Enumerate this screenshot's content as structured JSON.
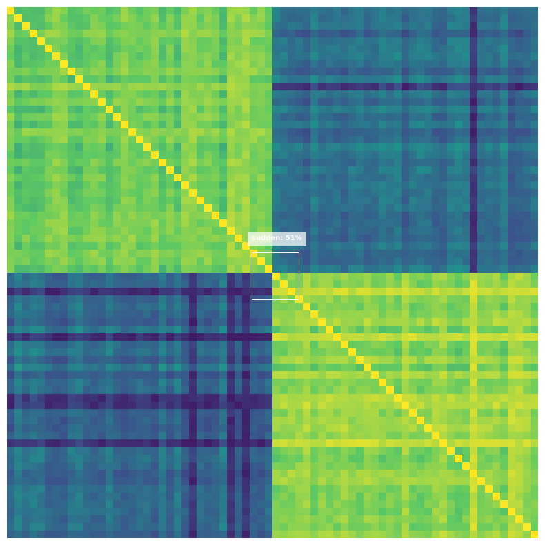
{
  "chart_data": {
    "type": "heatmap",
    "title": "",
    "xlabel": "",
    "ylabel": "",
    "grid": false,
    "legend": "none",
    "colormap": "viridis",
    "colormap_stops": [
      "#440154",
      "#3b528b",
      "#21918c",
      "#5ec962",
      "#fde725"
    ],
    "matrix_size": [
      70,
      70
    ],
    "block_boundary_index": 35,
    "block_values": {
      "top_left": "high",
      "top_right": "low",
      "bottom_left": "low",
      "bottom_right": "high"
    },
    "value_range": [
      0,
      1
    ]
  },
  "annotation": {
    "label": "sudden: 51%",
    "box_color": "#ffffff"
  }
}
